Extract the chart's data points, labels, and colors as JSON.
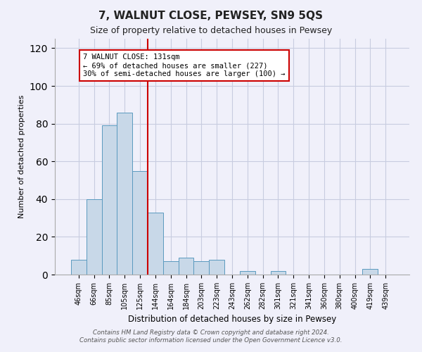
{
  "title": "7, WALNUT CLOSE, PEWSEY, SN9 5QS",
  "subtitle": "Size of property relative to detached houses in Pewsey",
  "xlabel": "Distribution of detached houses by size in Pewsey",
  "ylabel": "Number of detached properties",
  "categories": [
    "46sqm",
    "66sqm",
    "85sqm",
    "105sqm",
    "125sqm",
    "144sqm",
    "164sqm",
    "184sqm",
    "203sqm",
    "223sqm",
    "243sqm",
    "262sqm",
    "282sqm",
    "301sqm",
    "321sqm",
    "341sqm",
    "360sqm",
    "380sqm",
    "400sqm",
    "419sqm",
    "439sqm"
  ],
  "values": [
    8,
    40,
    79,
    86,
    55,
    33,
    7,
    9,
    7,
    8,
    0,
    2,
    0,
    2,
    0,
    0,
    0,
    0,
    0,
    3,
    0
  ],
  "bar_color": "#c8d8e8",
  "bar_edge_color": "#5a9abf",
  "vline_x": 4.5,
  "vline_color": "#cc0000",
  "annotation_line1": "7 WALNUT CLOSE: 131sqm",
  "annotation_line2": "← 69% of detached houses are smaller (227)",
  "annotation_line3": "30% of semi-detached houses are larger (100) →",
  "annotation_box_color": "#ffffff",
  "annotation_box_edge_color": "#cc0000",
  "ylim": [
    0,
    125
  ],
  "yticks": [
    0,
    20,
    40,
    60,
    80,
    100,
    120
  ],
  "footer_line1": "Contains HM Land Registry data © Crown copyright and database right 2024.",
  "footer_line2": "Contains public sector information licensed under the Open Government Licence v3.0.",
  "background_color": "#f0f0fa",
  "grid_color": "#c8cce0"
}
